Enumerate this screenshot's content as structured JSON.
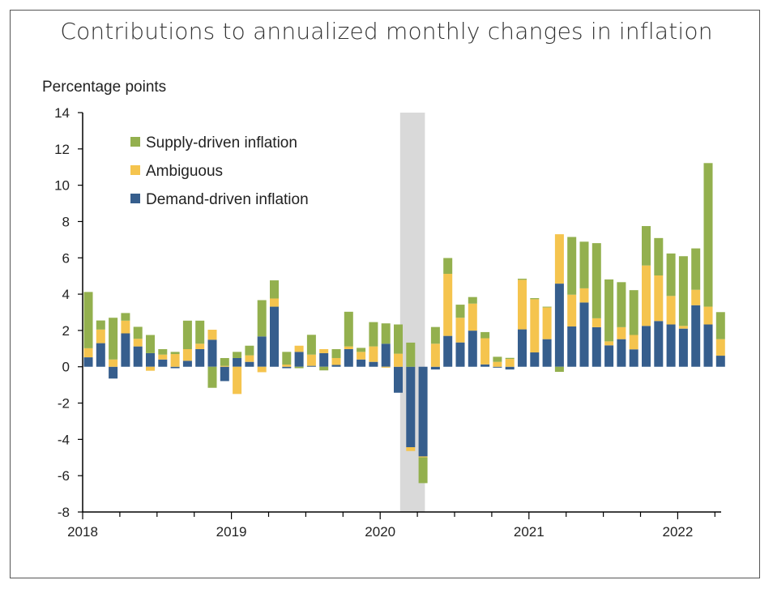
{
  "chart_data": {
    "type": "bar",
    "stacked": true,
    "title": "Contributions to annualized monthly changes in inflation",
    "ylabel": "Percentage points",
    "xlabel": "",
    "ylim": [
      -8,
      14
    ],
    "yticks": [
      -8,
      -6,
      -4,
      -2,
      0,
      2,
      4,
      6,
      8,
      10,
      12,
      14
    ],
    "xtick_labels": [
      "2018",
      "2019",
      "2020",
      "2021",
      "2022"
    ],
    "start_month": "2018-01",
    "frequency": "monthly",
    "shaded_period": [
      "2020-03",
      "2020-04"
    ],
    "legend_position": "top-left",
    "grid": false,
    "series": [
      {
        "name": "Supply-driven inflation",
        "color": "#93b04e",
        "values": [
          3.1,
          0.5,
          2.3,
          0.42,
          0.66,
          1.0,
          0.3,
          0.12,
          1.57,
          1.27,
          -1.16,
          0.43,
          0.34,
          0.53,
          2.0,
          1.0,
          0.7,
          -0.08,
          1.09,
          -0.2,
          0.49,
          1.91,
          0.22,
          1.34,
          1.12,
          1.61,
          1.33,
          -1.42,
          0.92,
          0.87,
          0.72,
          0.36,
          0.34,
          0.28,
          0.06,
          0.06,
          0.06,
          0.04,
          -0.28,
          3.18,
          2.57,
          4.14,
          3.41,
          2.48,
          2.47,
          2.17,
          2.06,
          2.34,
          3.84,
          2.28,
          7.91,
          1.49
        ]
      },
      {
        "name": "Ambiguous",
        "color": "#f5c44e",
        "values": [
          0.5,
          0.75,
          0.4,
          0.7,
          0.42,
          -0.22,
          0.27,
          0.7,
          0.64,
          0.3,
          0.55,
          0.05,
          -1.5,
          0.36,
          -0.3,
          0.45,
          0.12,
          0.34,
          0.62,
          0.22,
          0.38,
          0.15,
          0.42,
          0.85,
          -0.05,
          0.72,
          -0.21,
          -0.05,
          1.27,
          3.42,
          1.36,
          1.49,
          1.44,
          0.27,
          0.43,
          2.73,
          2.93,
          1.75,
          2.72,
          1.75,
          0.78,
          0.49,
          0.22,
          0.66,
          0.79,
          3.33,
          2.51,
          1.57,
          0.15,
          0.85,
          0.98,
          0.91
        ]
      },
      {
        "name": "Demand-driven inflation",
        "color": "#365e8d",
        "values": [
          0.52,
          1.3,
          -0.65,
          1.84,
          1.12,
          0.75,
          0.4,
          -0.08,
          0.33,
          0.97,
          1.49,
          -0.79,
          0.48,
          0.27,
          1.67,
          3.31,
          -0.08,
          0.82,
          0.05,
          0.75,
          0.1,
          0.97,
          0.4,
          0.27,
          1.27,
          -1.43,
          -4.43,
          -4.94,
          -0.15,
          1.7,
          1.34,
          1.99,
          0.13,
          -0.05,
          -0.15,
          2.06,
          0.79,
          1.52,
          4.58,
          2.22,
          3.54,
          2.18,
          1.18,
          1.52,
          0.96,
          2.25,
          2.52,
          2.33,
          2.1,
          3.39,
          2.33,
          0.61
        ]
      }
    ]
  }
}
